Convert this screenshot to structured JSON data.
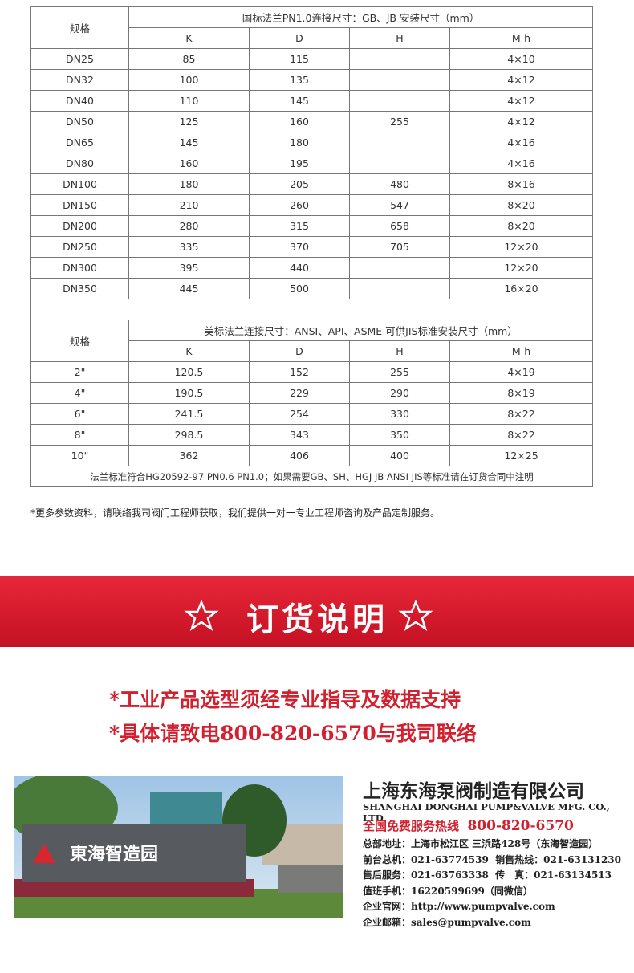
{
  "table1": {
    "spec_header": "规格",
    "title": "国标法兰PN1.0连接尺寸：GB、JB 安装尺寸（mm）",
    "columns": [
      "K",
      "D",
      "H",
      "M-h"
    ],
    "rows": [
      [
        "DN25",
        "85",
        "115",
        null,
        "4×10"
      ],
      [
        "DN32",
        "100",
        "135",
        null,
        "4×12"
      ],
      [
        "DN40",
        "110",
        "145",
        null,
        "4×12"
      ],
      [
        "DN50",
        "125",
        "160",
        "255",
        "4×12"
      ],
      [
        "DN65",
        "145",
        "180",
        null,
        "4×16"
      ],
      [
        "DN80",
        "160",
        "195",
        null,
        "4×16"
      ],
      [
        "DN100",
        "180",
        "205",
        "480",
        "8×16"
      ],
      [
        "DN150",
        "210",
        "260",
        "547",
        "8×20"
      ],
      [
        "DN200",
        "280",
        "315",
        "658",
        "8×20"
      ],
      [
        "DN250",
        "335",
        "370",
        "705",
        "12×20"
      ],
      [
        "DN300",
        "395",
        "440",
        null,
        "12×20"
      ],
      [
        "DN350",
        "445",
        "500",
        null,
        "16×20"
      ]
    ]
  },
  "table2": {
    "spec_header": "规格",
    "title": "美标法兰连接尺寸：ANSI、API、ASME 可供JIS标准安装尺寸（mm）",
    "columns": [
      "K",
      "D",
      "H",
      "M-h"
    ],
    "rows": [
      [
        "2\"",
        "120.5",
        "152",
        "255",
        "4×19"
      ],
      [
        "4\"",
        "190.5",
        "229",
        "290",
        "8×19"
      ],
      [
        "6\"",
        "241.5",
        "254",
        "330",
        "8×22"
      ],
      [
        "8\"",
        "298.5",
        "343",
        "350",
        "8×22"
      ],
      [
        "10\"",
        "362",
        "406",
        "400",
        "12×25"
      ]
    ],
    "footnote": "法兰标准符合HG20592-97 PN0.6 PN1.0；如果需要GB、SH、HGJ JB ANSI JIS等标准请在订货合同中注明"
  },
  "note": "*更多参数资料，请联络我司阀门工程师获取，我们提供一对一专业工程师咨询及产品定制服务。",
  "banner": {
    "title": "订货说明"
  },
  "order_notes": [
    "*工业产品选型须经专业指导及数据支持",
    "*具体请致电800-820-6570与我司联络"
  ],
  "photo": {
    "sign": "東海智造园"
  },
  "company": {
    "name": "上海东海泵阀制造有限公司",
    "name_en": "SHANGHAI DONGHAI PUMP&VALVE MFG. CO., LTD.",
    "hotline_label": "全国免费服务热线",
    "hotline": "800-820-6570",
    "contacts": [
      "总部地址：上海市松江区 三浜路428号（东海智造园）",
      "前台总机：021-63774539  销售热线：021-63131230",
      "售后服务：021-63763338  传　真：021-63134513",
      "值班手机：16220599699（同微信）",
      "企业官网：http://www.pumpvalve.com",
      "企业邮箱：sales@pumpvalve.com"
    ]
  }
}
